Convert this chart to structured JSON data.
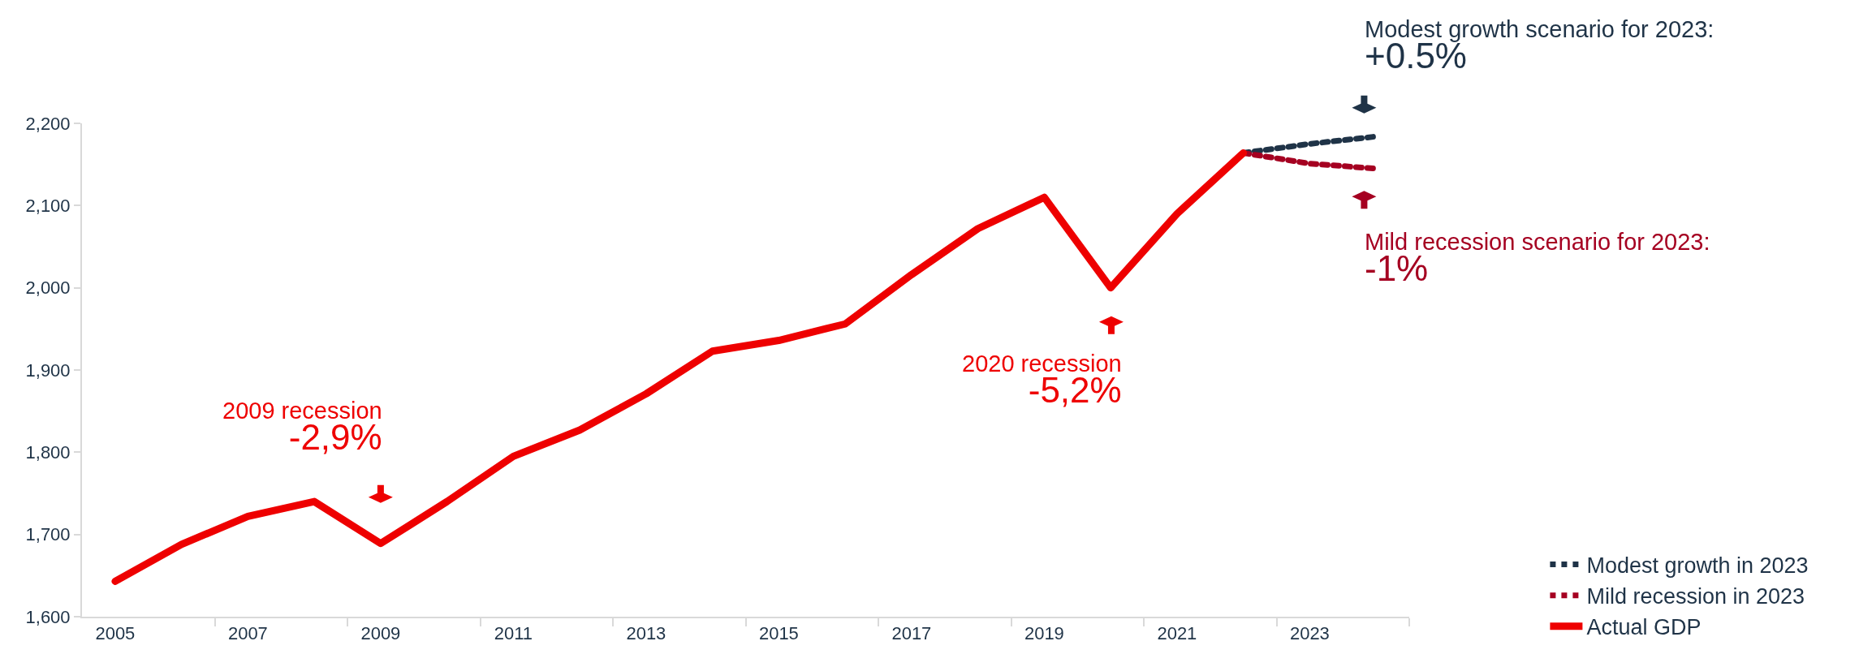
{
  "chart_data": {
    "type": "line",
    "categories": [
      "2005",
      null,
      "2007",
      null,
      "2009",
      null,
      "2011",
      null,
      "2013",
      null,
      "2015",
      null,
      "2017",
      null,
      "2019",
      null,
      "2021",
      null,
      "2023",
      null
    ],
    "series": [
      {
        "name": "Modest growth in 2023",
        "color": "#1f3347",
        "line_style": "dotted",
        "values": [
          null,
          null,
          null,
          null,
          null,
          null,
          null,
          null,
          null,
          null,
          null,
          null,
          null,
          null,
          null,
          null,
          null,
          2164,
          2175,
          2184
        ]
      },
      {
        "name": "Mild recession in 2023",
        "color": "#a50021",
        "line_style": "dotted",
        "values": [
          null,
          null,
          null,
          null,
          null,
          null,
          null,
          null,
          null,
          null,
          null,
          null,
          null,
          null,
          null,
          null,
          null,
          2164,
          2151,
          2145
        ]
      },
      {
        "name": "Actual GDP",
        "color": "#ee0000",
        "line_style": "solid",
        "values": [
          1643,
          1688,
          1722,
          1740,
          1689,
          1740,
          1795,
          1827,
          1871,
          1923,
          1936,
          1956,
          2016,
          2072,
          2110,
          2000,
          2090,
          2164,
          null,
          null
        ]
      }
    ],
    "ylim": [
      1600,
      2200
    ],
    "yticks": [
      {
        "value": 1600,
        "label": "1,600"
      },
      {
        "value": 1700,
        "label": "1,700"
      },
      {
        "value": 1800,
        "label": "1,800"
      },
      {
        "value": 1900,
        "label": "1,900"
      },
      {
        "value": 2000,
        "label": "2,000"
      },
      {
        "value": 2100,
        "label": "2,100"
      },
      {
        "value": 2200,
        "label": "2,200"
      }
    ],
    "grid": false,
    "legend": "bottom right",
    "annotations": [
      {
        "text": "2009 recession\n-2,9%",
        "x": "2009",
        "y": 1689
      },
      "2020 recession\n-5,2%",
      "Modest growth scenario for 2023:\n+0.5%",
      "Mild recession scenario for 2023:\n-1%"
    ]
  }
}
